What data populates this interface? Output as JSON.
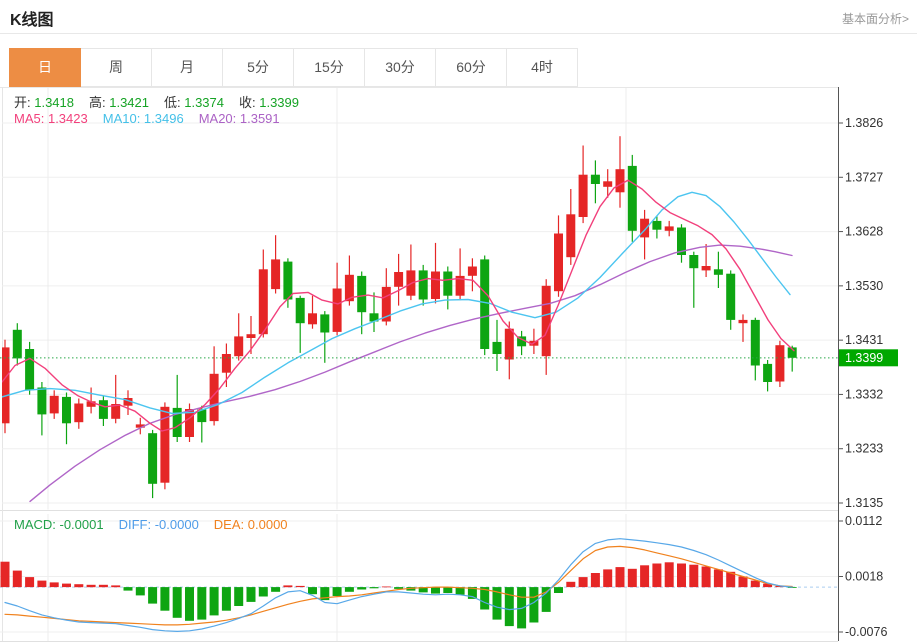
{
  "header": {
    "title": "K线图",
    "analysis_link": "基本面分析>"
  },
  "tabs": {
    "selected": "日",
    "items": [
      {
        "name": "tab-day",
        "label": "日"
      },
      {
        "name": "tab-week",
        "label": "周"
      },
      {
        "name": "tab-month",
        "label": "月"
      },
      {
        "name": "tab-5min",
        "label": "5分"
      },
      {
        "name": "tab-15min",
        "label": "15分"
      },
      {
        "name": "tab-30min",
        "label": "30分"
      },
      {
        "name": "tab-60min",
        "label": "60分"
      },
      {
        "name": "tab-4hour",
        "label": "4时"
      }
    ]
  },
  "ohlc_legend": {
    "label_color": "#333333",
    "value_color": "#16a325",
    "items": [
      {
        "name": "open-value",
        "label": "开:",
        "value": "1.3418"
      },
      {
        "name": "high-value",
        "label": "高:",
        "value": "1.3421"
      },
      {
        "name": "low-value",
        "label": "低:",
        "value": "1.3374"
      },
      {
        "name": "close-value",
        "label": "收:",
        "value": "1.3399"
      }
    ]
  },
  "ma_legend": {
    "items": [
      {
        "name": "ma5-value",
        "label": "MA5:",
        "value": "1.3423",
        "color": "#f2407c"
      },
      {
        "name": "ma10-value",
        "label": "MA10:",
        "value": "1.3496",
        "color": "#44c0e8"
      },
      {
        "name": "ma20-value",
        "label": "MA20:",
        "value": "1.3591",
        "color": "#ab62c5"
      }
    ]
  },
  "macd_legend": {
    "items": [
      {
        "name": "macd-value",
        "label": "MACD:",
        "value": "-0.0001",
        "color": "#21a049"
      },
      {
        "name": "diff-value",
        "label": "DIFF:",
        "value": "-0.0000",
        "color": "#4f9ce8"
      },
      {
        "name": "dea-value",
        "label": "DEA:",
        "value": "0.0000",
        "color": "#f0821e"
      }
    ]
  },
  "colors": {
    "up": "#e52626",
    "down": "#0ea512",
    "ma5": "#f2407c",
    "ma10": "#4cc5f0",
    "ma20": "#b066c8",
    "diff": "#58a8e8",
    "dea": "#f0821e",
    "price_tag_bg": "#00a800",
    "price_line": "#2aa848",
    "grid": "#efefef",
    "vgrid": "#ececec",
    "axis": "#666666",
    "tick_text": "#333333",
    "zero_dash": "#aacdf0",
    "frame": "#e5e5e5"
  },
  "chart_data": {
    "type": "candlestick_with_macd",
    "title": "K线图",
    "main": {
      "y_ticks": [
        "1.3826",
        "1.3727",
        "1.3628",
        "1.3530",
        "1.3431",
        "1.3332",
        "1.3233",
        "1.3135"
      ],
      "current_price": 1.3399,
      "current_price_label": "1.3399",
      "candles_ohlc": [
        [
          1.328,
          1.3432,
          1.3262,
          1.3418
        ],
        [
          1.345,
          1.3462,
          1.3385,
          1.3398
        ],
        [
          1.3415,
          1.3428,
          1.3332,
          1.334
        ],
        [
          1.3345,
          1.3355,
          1.3258,
          1.3296
        ],
        [
          1.3298,
          1.334,
          1.3288,
          1.333
        ],
        [
          1.3328,
          1.3336,
          1.3242,
          1.328
        ],
        [
          1.3282,
          1.3325,
          1.327,
          1.3316
        ],
        [
          1.331,
          1.3345,
          1.3298,
          1.332
        ],
        [
          1.3322,
          1.333,
          1.3275,
          1.3288
        ],
        [
          1.3288,
          1.3368,
          1.328,
          1.3315
        ],
        [
          1.3312,
          1.334,
          1.3295,
          1.3326
        ],
        [
          1.3272,
          1.329,
          1.326,
          1.3278
        ],
        [
          1.3262,
          1.3268,
          1.3144,
          1.317
        ],
        [
          1.3172,
          1.3318,
          1.316,
          1.331
        ],
        [
          1.3308,
          1.3368,
          1.3246,
          1.3255
        ],
        [
          1.3255,
          1.3316,
          1.3246,
          1.3306
        ],
        [
          1.3305,
          1.3312,
          1.3245,
          1.3282
        ],
        [
          1.3284,
          1.342,
          1.3276,
          1.337
        ],
        [
          1.3372,
          1.3425,
          1.3346,
          1.3406
        ],
        [
          1.3402,
          1.348,
          1.3394,
          1.3438
        ],
        [
          1.3435,
          1.3475,
          1.3406,
          1.3442
        ],
        [
          1.3442,
          1.3596,
          1.3436,
          1.356
        ],
        [
          1.3524,
          1.3622,
          1.3516,
          1.3578
        ],
        [
          1.3574,
          1.358,
          1.349,
          1.3505
        ],
        [
          1.3508,
          1.3512,
          1.3408,
          1.3462
        ],
        [
          1.346,
          1.3512,
          1.3452,
          1.348
        ],
        [
          1.3478,
          1.3484,
          1.339,
          1.3445
        ],
        [
          1.3446,
          1.3572,
          1.344,
          1.3525
        ],
        [
          1.3502,
          1.3585,
          1.3494,
          1.355
        ],
        [
          1.3548,
          1.3556,
          1.3442,
          1.3482
        ],
        [
          1.348,
          1.3518,
          1.3446,
          1.3465
        ],
        [
          1.3465,
          1.3562,
          1.3458,
          1.3528
        ],
        [
          1.3528,
          1.3588,
          1.3494,
          1.3555
        ],
        [
          1.3512,
          1.3605,
          1.3504,
          1.3558
        ],
        [
          1.3558,
          1.3568,
          1.3494,
          1.3505
        ],
        [
          1.3506,
          1.3608,
          1.3498,
          1.3556
        ],
        [
          1.3556,
          1.3565,
          1.3487,
          1.3512
        ],
        [
          1.3512,
          1.3598,
          1.3504,
          1.3548
        ],
        [
          1.3548,
          1.358,
          1.352,
          1.3565
        ],
        [
          1.3578,
          1.3585,
          1.3404,
          1.3415
        ],
        [
          1.3428,
          1.3468,
          1.3375,
          1.3406
        ],
        [
          1.3396,
          1.3465,
          1.336,
          1.3452
        ],
        [
          1.3438,
          1.3448,
          1.3404,
          1.342
        ],
        [
          1.3421,
          1.3452,
          1.3406,
          1.343
        ],
        [
          1.3402,
          1.3542,
          1.3368,
          1.353
        ],
        [
          1.352,
          1.3658,
          1.351,
          1.3625
        ],
        [
          1.3582,
          1.3706,
          1.3568,
          1.366
        ],
        [
          1.3655,
          1.3785,
          1.3644,
          1.3732
        ],
        [
          1.3732,
          1.3758,
          1.368,
          1.3715
        ],
        [
          1.371,
          1.3742,
          1.369,
          1.372
        ],
        [
          1.37,
          1.3802,
          1.3672,
          1.3742
        ],
        [
          1.3748,
          1.3768,
          1.361,
          1.363
        ],
        [
          1.3618,
          1.3668,
          1.3578,
          1.3652
        ],
        [
          1.3648,
          1.3656,
          1.3616,
          1.3632
        ],
        [
          1.363,
          1.3648,
          1.362,
          1.3638
        ],
        [
          1.3636,
          1.3642,
          1.3572,
          1.3586
        ],
        [
          1.3586,
          1.3592,
          1.349,
          1.3562
        ],
        [
          1.3558,
          1.3606,
          1.3546,
          1.3566
        ],
        [
          1.356,
          1.3592,
          1.3526,
          1.355
        ],
        [
          1.3552,
          1.3558,
          1.345,
          1.3468
        ],
        [
          1.3462,
          1.3478,
          1.3428,
          1.3468
        ],
        [
          1.3468,
          1.3472,
          1.3358,
          1.3385
        ],
        [
          1.3388,
          1.3395,
          1.3338,
          1.3355
        ],
        [
          1.3356,
          1.343,
          1.3346,
          1.3422
        ],
        [
          1.3418,
          1.3421,
          1.3374,
          1.3399
        ]
      ],
      "ma5_path": [
        [
          2,
          1.3355
        ],
        [
          15,
          1.3385
        ],
        [
          30,
          1.3398
        ],
        [
          45,
          1.338
        ],
        [
          62,
          1.335
        ],
        [
          78,
          1.333
        ],
        [
          92,
          1.3318
        ],
        [
          105,
          1.331
        ],
        [
          120,
          1.3313
        ],
        [
          135,
          1.3302
        ],
        [
          150,
          1.328
        ],
        [
          162,
          1.3266
        ],
        [
          175,
          1.3272
        ],
        [
          190,
          1.329
        ],
        [
          205,
          1.3314
        ],
        [
          220,
          1.3344
        ],
        [
          235,
          1.338
        ],
        [
          250,
          1.3412
        ],
        [
          265,
          1.345
        ],
        [
          280,
          1.3492
        ],
        [
          293,
          1.3516
        ],
        [
          308,
          1.3518
        ],
        [
          322,
          1.3504
        ],
        [
          338,
          1.3497
        ],
        [
          352,
          1.3509
        ],
        [
          368,
          1.3513
        ],
        [
          383,
          1.3508
        ],
        [
          398,
          1.3521
        ],
        [
          413,
          1.3536
        ],
        [
          428,
          1.3543
        ],
        [
          443,
          1.354
        ],
        [
          458,
          1.3543
        ],
        [
          473,
          1.354
        ],
        [
          488,
          1.3512
        ],
        [
          503,
          1.3466
        ],
        [
          518,
          1.3436
        ],
        [
          532,
          1.3424
        ],
        [
          545,
          1.344
        ],
        [
          558,
          1.3494
        ],
        [
          572,
          1.3558
        ],
        [
          586,
          1.3622
        ],
        [
          600,
          1.3674
        ],
        [
          614,
          1.3708
        ],
        [
          628,
          1.3722
        ],
        [
          642,
          1.3706
        ],
        [
          656,
          1.3682
        ],
        [
          670,
          1.3663
        ],
        [
          684,
          1.3651
        ],
        [
          698,
          1.3639
        ],
        [
          712,
          1.3623
        ],
        [
          726,
          1.3597
        ],
        [
          740,
          1.356
        ],
        [
          754,
          1.3514
        ],
        [
          768,
          1.3468
        ],
        [
          781,
          1.3434
        ],
        [
          794,
          1.3412
        ]
      ],
      "ma10_path": [
        [
          2,
          1.3328
        ],
        [
          25,
          1.334
        ],
        [
          50,
          1.3343
        ],
        [
          75,
          1.334
        ],
        [
          100,
          1.3331
        ],
        [
          125,
          1.3323
        ],
        [
          150,
          1.3308
        ],
        [
          172,
          1.3298
        ],
        [
          195,
          1.33
        ],
        [
          218,
          1.3314
        ],
        [
          242,
          1.3336
        ],
        [
          265,
          1.3364
        ],
        [
          288,
          1.339
        ],
        [
          310,
          1.3412
        ],
        [
          332,
          1.3434
        ],
        [
          355,
          1.3452
        ],
        [
          378,
          1.3468
        ],
        [
          400,
          1.3484
        ],
        [
          422,
          1.3497
        ],
        [
          445,
          1.3504
        ],
        [
          468,
          1.3505
        ],
        [
          490,
          1.3498
        ],
        [
          512,
          1.3482
        ],
        [
          535,
          1.3472
        ],
        [
          556,
          1.3482
        ],
        [
          578,
          1.3508
        ],
        [
          600,
          1.3545
        ],
        [
          622,
          1.3588
        ],
        [
          645,
          1.3632
        ],
        [
          662,
          1.3668
        ],
        [
          678,
          1.3692
        ],
        [
          692,
          1.37
        ],
        [
          706,
          1.3694
        ],
        [
          720,
          1.3674
        ],
        [
          734,
          1.3646
        ],
        [
          748,
          1.3614
        ],
        [
          762,
          1.358
        ],
        [
          776,
          1.3546
        ],
        [
          790,
          1.3514
        ]
      ],
      "ma20_path": [
        [
          30,
          1.3138
        ],
        [
          50,
          1.3168
        ],
        [
          75,
          1.3202
        ],
        [
          100,
          1.3232
        ],
        [
          125,
          1.3258
        ],
        [
          150,
          1.328
        ],
        [
          175,
          1.3296
        ],
        [
          200,
          1.3308
        ],
        [
          225,
          1.3319
        ],
        [
          250,
          1.3329
        ],
        [
          275,
          1.3341
        ],
        [
          300,
          1.3356
        ],
        [
          325,
          1.3373
        ],
        [
          350,
          1.3392
        ],
        [
          375,
          1.341
        ],
        [
          400,
          1.3428
        ],
        [
          425,
          1.3444
        ],
        [
          450,
          1.3458
        ],
        [
          475,
          1.347
        ],
        [
          500,
          1.348
        ],
        [
          525,
          1.3489
        ],
        [
          550,
          1.3498
        ],
        [
          575,
          1.3512
        ],
        [
          600,
          1.3532
        ],
        [
          625,
          1.3554
        ],
        [
          650,
          1.3574
        ],
        [
          675,
          1.359
        ],
        [
          700,
          1.36
        ],
        [
          720,
          1.3604
        ],
        [
          740,
          1.3602
        ],
        [
          760,
          1.3597
        ],
        [
          775,
          1.3592
        ],
        [
          792,
          1.3585
        ]
      ]
    },
    "macd": {
      "y_ticks": [
        "0.0112",
        "0.0018",
        "-0.0076"
      ],
      "histogram": [
        0.0043,
        0.0028,
        0.0017,
        0.0011,
        0.0008,
        0.0006,
        0.0005,
        0.0004,
        0.0004,
        0.0003,
        -0.0006,
        -0.0014,
        -0.0028,
        -0.004,
        -0.0052,
        -0.0057,
        -0.0055,
        -0.0048,
        -0.004,
        -0.0032,
        -0.0025,
        -0.0016,
        -0.0008,
        0.0003,
        0.0002,
        -0.0012,
        -0.0022,
        -0.0015,
        -0.0008,
        -0.0004,
        -0.0002,
        0.0001,
        -0.0003,
        -0.0006,
        -0.0009,
        -0.0011,
        -0.001,
        -0.0013,
        -0.002,
        -0.0038,
        -0.0055,
        -0.0066,
        -0.007,
        -0.006,
        -0.0042,
        -0.001,
        0.0009,
        0.0017,
        0.0024,
        0.003,
        0.0034,
        0.0031,
        0.0037,
        0.004,
        0.0042,
        0.004,
        0.0038,
        0.0035,
        0.003,
        0.0026,
        0.0018,
        0.0011,
        0.0006,
        0.0002,
        -0.0001
      ],
      "diff_line": [
        -0.0026,
        -0.0032,
        -0.004,
        -0.0047,
        -0.0052,
        -0.0056,
        -0.0059,
        -0.006,
        -0.0061,
        -0.0062,
        -0.0065,
        -0.0068,
        -0.0072,
        -0.0074,
        -0.0075,
        -0.0074,
        -0.0071,
        -0.0066,
        -0.006,
        -0.0053,
        -0.0045,
        -0.0032,
        -0.0018,
        -0.0008,
        -0.0006,
        -0.0014,
        -0.0026,
        -0.0028,
        -0.0022,
        -0.0016,
        -0.0012,
        -0.0008,
        -0.0008,
        -0.001,
        -0.0012,
        -0.0013,
        -0.0012,
        -0.0013,
        -0.0016,
        -0.0026,
        -0.0034,
        -0.0038,
        -0.0036,
        -0.0026,
        -0.001,
        0.0012,
        0.0038,
        0.006,
        0.0074,
        0.008,
        0.0082,
        0.008,
        0.0078,
        0.0075,
        0.0072,
        0.0068,
        0.0062,
        0.0055,
        0.0046,
        0.0036,
        0.0026,
        0.0016,
        0.0007,
        0.0002,
        0.0
      ],
      "dea_line": [
        -0.0046,
        -0.0047,
        -0.0049,
        -0.0051,
        -0.0053,
        -0.0055,
        -0.0057,
        -0.0058,
        -0.0059,
        -0.006,
        -0.0061,
        -0.0062,
        -0.0063,
        -0.0064,
        -0.0064,
        -0.0063,
        -0.0061,
        -0.0059,
        -0.0056,
        -0.0052,
        -0.0047,
        -0.0041,
        -0.0035,
        -0.0029,
        -0.0024,
        -0.002,
        -0.0018,
        -0.0016,
        -0.0015,
        -0.0013,
        -0.001,
        -0.0007,
        -0.0004,
        -0.0002,
        -0.0001,
        0.0,
        0.0,
        -0.0001,
        -0.0002,
        -0.0004,
        -0.0008,
        -0.0013,
        -0.0017,
        -0.0017,
        -0.0008,
        0.0008,
        0.0028,
        0.0048,
        0.0062,
        0.0068,
        0.0069,
        0.0067,
        0.0063,
        0.0058,
        0.0053,
        0.0048,
        0.0042,
        0.0036,
        0.003,
        0.0024,
        0.0018,
        0.0012,
        0.0006,
        0.0002,
        0.0001
      ]
    }
  }
}
